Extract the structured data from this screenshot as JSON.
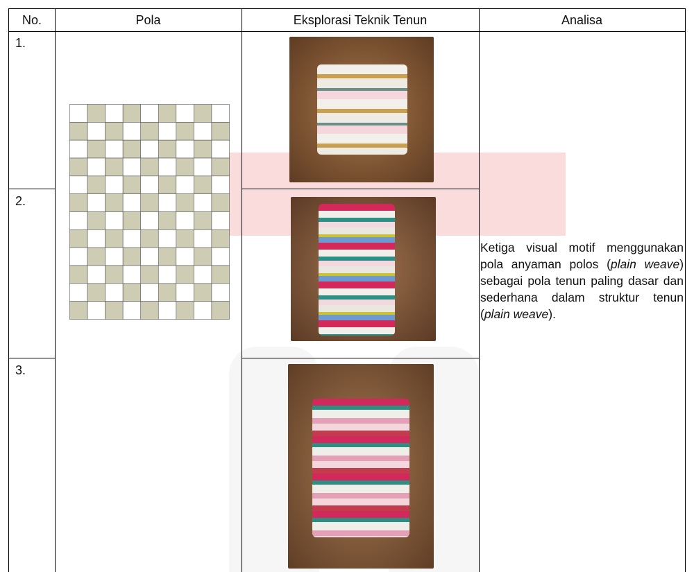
{
  "table": {
    "header": [
      "No.",
      "Pola",
      "Eksplorasi Teknik Tenun",
      "Analisa"
    ],
    "rows": [
      [
        "1."
      ],
      [
        "2."
      ],
      [
        "3."
      ]
    ],
    "analysis": [
      "Ketiga visual motif menggunakan pola anyaman polos (",
      "plain weave",
      ")  sebagai pola tenun paling dasar dan sederhana dalam struktur tenun (",
      "plain weave",
      ")."
    ]
  }
}
